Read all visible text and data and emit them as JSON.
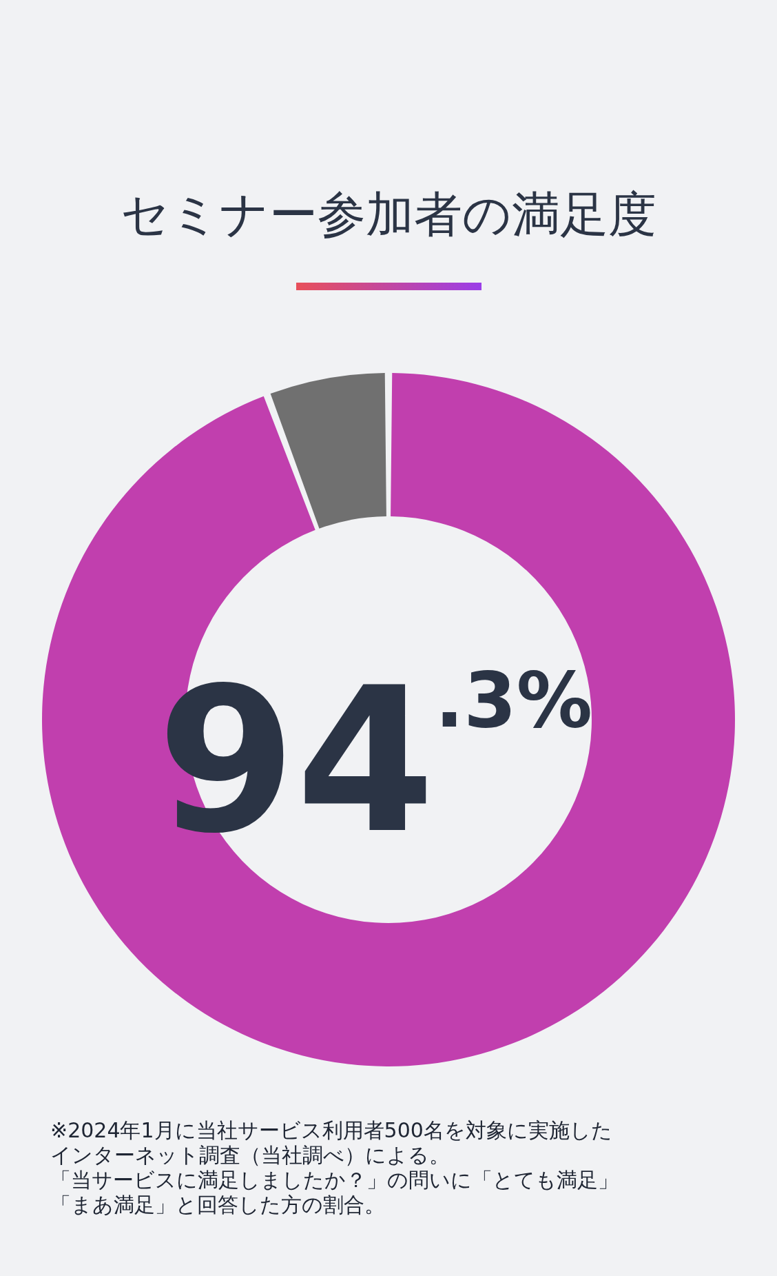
{
  "chart_data": {
    "type": "donut",
    "title": "セミナー参加者の満足度",
    "categories": [
      null,
      null
    ],
    "values": [
      94.3,
      5.7
    ],
    "colors": [
      "#c13fae",
      "#707070"
    ],
    "value_labels": [
      "94.3%",
      null
    ],
    "annotations": [
      "※2024年1月に当社サービス利用者500名を対象に実施した",
      "インターネット調査（当社調べ）による。",
      "「当サービスに満足しましたか？」の問いに「とても満足」",
      "「まあ満足」と回答した方の割合。"
    ]
  }
}
